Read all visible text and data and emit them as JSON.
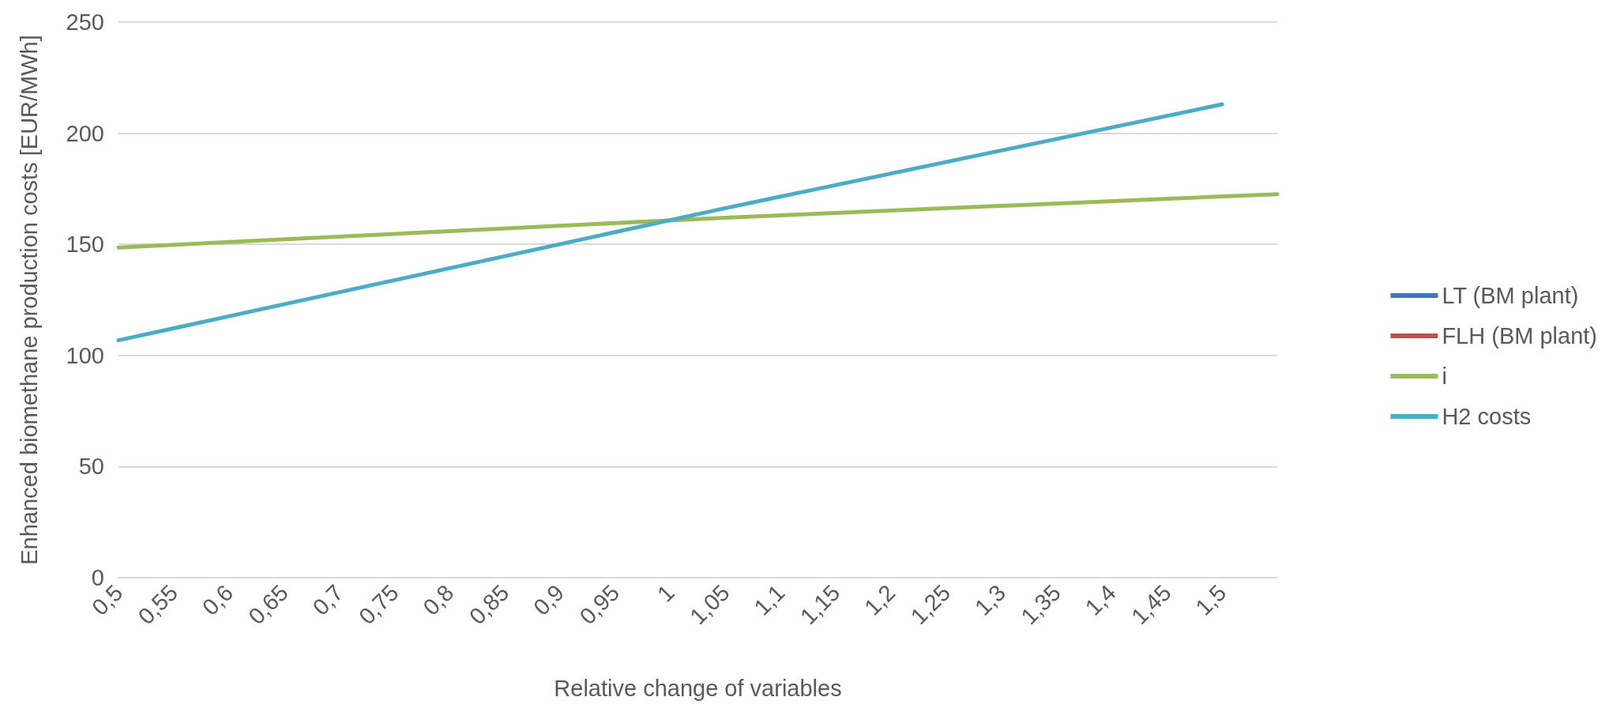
{
  "chart_data": {
    "type": "line",
    "xlabel": "Relative change of variables",
    "ylabel": "Enhanced biomethane production costs [EUR/MWh]",
    "categories": [
      "0,5",
      "0,55",
      "0,6",
      "0,65",
      "0,7",
      "0,75",
      "0,8",
      "0,85",
      "0,9",
      "0,95",
      "1",
      "1,05",
      "1,1",
      "1,15",
      "1,2",
      "1,25",
      "1,3",
      "1,35",
      "1,4",
      "1,45",
      "1,5",
      null
    ],
    "series": [
      {
        "name": "LT (BM plant)",
        "color": "#4472c4",
        "values": [
          null,
          null,
          null,
          null,
          null,
          null,
          null,
          null,
          null,
          null,
          null,
          null,
          null,
          null,
          null,
          null,
          null,
          null,
          null,
          null,
          null,
          null
        ]
      },
      {
        "name": "FLH (BM plant)",
        "color": "#c0504d",
        "values": [
          null,
          null,
          null,
          null,
          null,
          null,
          null,
          null,
          null,
          null,
          null,
          null,
          null,
          null,
          null,
          null,
          null,
          null,
          null,
          null,
          null,
          null
        ]
      },
      {
        "name": "i",
        "color": "#9bbb59",
        "values": [
          148.6,
          null,
          null,
          null,
          null,
          null,
          null,
          null,
          null,
          null,
          null,
          162,
          null,
          null,
          null,
          null,
          null,
          null,
          null,
          null,
          null,
          172.6
        ]
      },
      {
        "name": "H2 costs",
        "color": "#4bacc6",
        "values": [
          106.8,
          null,
          null,
          null,
          null,
          null,
          null,
          null,
          null,
          null,
          null,
          166.3,
          null,
          null,
          null,
          null,
          null,
          null,
          null,
          null,
          213,
          null
        ]
      }
    ],
    "ylim": [
      0,
      250
    ],
    "yticks": [
      0,
      50,
      100,
      150,
      200,
      250
    ],
    "grid": "y",
    "legend": "right",
    "marker": "none",
    "line_style": "solid"
  }
}
